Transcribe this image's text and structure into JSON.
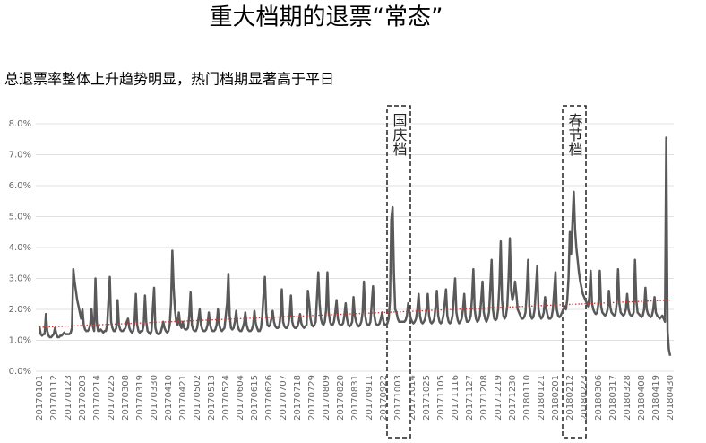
{
  "chart_data": {
    "type": "line",
    "title": "重大档期的退票“常态”",
    "subtitle": "总退票率整体上升趋势明显，热门档期显著高于平日",
    "annotations": [
      "国庆档",
      "春节档"
    ],
    "color": "#595959",
    "grid": true,
    "ylim": [
      0,
      8
    ],
    "yticks": [
      {
        "value": 0,
        "label": "0.0%"
      },
      {
        "value": 1,
        "label": "1.0%"
      },
      {
        "value": 2,
        "label": "2.0%"
      },
      {
        "value": 3,
        "label": "3.0%"
      },
      {
        "value": 4,
        "label": "4.0%"
      },
      {
        "value": 5,
        "label": "5.0%"
      },
      {
        "value": 6,
        "label": "6.0%"
      },
      {
        "value": 7,
        "label": "7.0%"
      },
      {
        "value": 8,
        "label": "8.0%"
      }
    ],
    "trend": {
      "values": [
        1.42,
        2.3
      ],
      "color": "#e03030"
    },
    "categories": [
      "20170101",
      null,
      null,
      null,
      null,
      null,
      null,
      null,
      null,
      null,
      null,
      "20170112",
      null,
      null,
      null,
      null,
      null,
      null,
      null,
      null,
      null,
      null,
      "20170123",
      null,
      null,
      null,
      null,
      null,
      null,
      null,
      null,
      null,
      null,
      "20170203",
      null,
      null,
      null,
      null,
      null,
      null,
      null,
      null,
      null,
      null,
      "20170214",
      null,
      null,
      null,
      null,
      null,
      null,
      null,
      null,
      null,
      null,
      "20170225",
      null,
      null,
      null,
      null,
      null,
      null,
      null,
      null,
      null,
      null,
      "20170308",
      null,
      null,
      null,
      null,
      null,
      null,
      null,
      null,
      null,
      null,
      "20170319",
      null,
      null,
      null,
      null,
      null,
      null,
      null,
      null,
      null,
      null,
      "20170330",
      null,
      null,
      null,
      null,
      null,
      null,
      null,
      null,
      null,
      null,
      "20170410",
      null,
      null,
      null,
      null,
      null,
      null,
      null,
      null,
      null,
      null,
      "20170421",
      null,
      null,
      null,
      null,
      null,
      null,
      null,
      null,
      null,
      null,
      "20170502",
      null,
      null,
      null,
      null,
      null,
      null,
      null,
      null,
      null,
      null,
      "20170513",
      null,
      null,
      null,
      null,
      null,
      null,
      null,
      null,
      null,
      null,
      "20170524",
      null,
      null,
      null,
      null,
      null,
      null,
      null,
      null,
      null,
      null,
      "20170604",
      null,
      null,
      null,
      null,
      null,
      null,
      null,
      null,
      null,
      null,
      "20170615",
      null,
      null,
      null,
      null,
      null,
      null,
      null,
      null,
      null,
      null,
      "20170626",
      null,
      null,
      null,
      null,
      null,
      null,
      null,
      null,
      null,
      null,
      "20170707",
      null,
      null,
      null,
      null,
      null,
      null,
      null,
      null,
      null,
      null,
      "20170718",
      null,
      null,
      null,
      null,
      null,
      null,
      null,
      null,
      null,
      null,
      "20170729",
      null,
      null,
      null,
      null,
      null,
      null,
      null,
      null,
      null,
      null,
      "20170809",
      null,
      null,
      null,
      null,
      null,
      null,
      null,
      null,
      null,
      null,
      "20170820",
      null,
      null,
      null,
      null,
      null,
      null,
      null,
      null,
      null,
      null,
      "20170831",
      null,
      null,
      null,
      null,
      null,
      null,
      null,
      null,
      null,
      null,
      "20170911",
      null,
      null,
      null,
      null,
      null,
      null,
      null,
      null,
      null,
      null,
      "20170922",
      null,
      null,
      null,
      null,
      null,
      null,
      null,
      null,
      null,
      null,
      "20171003",
      null,
      null,
      null,
      null,
      null,
      null,
      null,
      null,
      null,
      null,
      "20171014",
      null,
      null,
      null,
      null,
      null,
      null,
      null,
      null,
      null,
      null,
      "20171025",
      null,
      null,
      null,
      null,
      null,
      null,
      null,
      null,
      null,
      null,
      "20171105",
      null,
      null,
      null,
      null,
      null,
      null,
      null,
      null,
      null,
      null,
      "20171116",
      null,
      null,
      null,
      null,
      null,
      null,
      null,
      null,
      null,
      null,
      "20171127",
      null,
      null,
      null,
      null,
      null,
      null,
      null,
      null,
      null,
      null,
      "20171208",
      null,
      null,
      null,
      null,
      null,
      null,
      null,
      null,
      null,
      null,
      "20171219",
      null,
      null,
      null,
      null,
      null,
      null,
      null,
      null,
      null,
      null,
      "20171230",
      null,
      null,
      null,
      null,
      null,
      null,
      null,
      null,
      null,
      null,
      "20180110",
      null,
      null,
      null,
      null,
      null,
      null,
      null,
      null,
      null,
      null,
      "20180121",
      null,
      null,
      null,
      null,
      null,
      null,
      null,
      null,
      null,
      null,
      "20180201",
      null,
      null,
      null,
      null,
      null,
      null,
      null,
      null,
      null,
      null,
      "20180212",
      null,
      null,
      null,
      null,
      null,
      null,
      null,
      null,
      null,
      null,
      "20180223",
      null,
      null,
      null,
      null,
      null,
      null,
      null,
      null,
      null,
      null,
      "20180306",
      null,
      null,
      null,
      null,
      null,
      null,
      null,
      null,
      null,
      null,
      "20180317",
      null,
      null,
      null,
      null,
      null,
      null,
      null,
      null,
      null,
      null,
      "20180328",
      null,
      null,
      null,
      null,
      null,
      null,
      null,
      null,
      null,
      null,
      "20180408",
      null,
      null,
      null,
      null,
      null,
      null,
      null,
      null,
      null,
      null,
      "20180419",
      null,
      null,
      null,
      null,
      null,
      null,
      null,
      null,
      null,
      null,
      "20180430"
    ],
    "values": [
      1.45,
      1.2,
      1.15,
      1.2,
      1.2,
      1.85,
      1.3,
      1.15,
      1.1,
      1.1,
      1.15,
      1.2,
      1.4,
      1.2,
      1.1,
      1.1,
      1.15,
      1.15,
      1.2,
      1.25,
      1.2,
      1.2,
      1.2,
      1.2,
      1.25,
      1.4,
      3.3,
      2.9,
      2.6,
      2.3,
      2.1,
      1.9,
      1.7,
      2.0,
      1.5,
      1.35,
      1.3,
      1.3,
      1.35,
      1.5,
      2.0,
      1.45,
      1.3,
      3.0,
      1.6,
      1.3,
      1.3,
      1.35,
      1.3,
      1.25,
      1.3,
      1.3,
      1.5,
      2.3,
      3.05,
      1.6,
      1.4,
      1.3,
      1.3,
      1.4,
      2.3,
      1.5,
      1.35,
      1.3,
      1.3,
      1.35,
      1.4,
      1.6,
      1.7,
      1.4,
      1.3,
      1.25,
      1.3,
      1.6,
      2.5,
      1.5,
      1.3,
      1.25,
      1.3,
      1.3,
      1.5,
      2.45,
      1.6,
      1.3,
      1.25,
      1.2,
      1.3,
      2.0,
      2.7,
      1.4,
      1.25,
      1.2,
      1.2,
      1.25,
      1.4,
      1.6,
      1.4,
      1.3,
      1.25,
      1.3,
      1.5,
      2.2,
      3.9,
      2.7,
      2.0,
      1.6,
      1.5,
      1.9,
      1.5,
      1.4,
      1.6,
      1.4,
      1.35,
      1.35,
      1.4,
      1.8,
      2.55,
      1.5,
      1.35,
      1.3,
      1.3,
      1.4,
      1.7,
      2.0,
      1.5,
      1.35,
      1.3,
      1.3,
      1.35,
      1.5,
      1.9,
      1.5,
      1.35,
      1.3,
      1.3,
      1.35,
      1.5,
      2.0,
      1.5,
      1.35,
      1.3,
      1.35,
      1.4,
      1.8,
      2.2,
      3.15,
      1.8,
      1.4,
      1.35,
      1.4,
      1.6,
      1.95,
      1.5,
      1.35,
      1.3,
      1.3,
      1.4,
      1.55,
      1.9,
      1.5,
      1.35,
      1.3,
      1.3,
      1.35,
      1.5,
      1.95,
      1.55,
      1.4,
      1.3,
      1.3,
      1.4,
      1.8,
      2.5,
      3.05,
      1.9,
      1.5,
      1.45,
      1.5,
      1.7,
      1.95,
      1.6,
      1.45,
      1.4,
      1.4,
      1.45,
      1.8,
      2.65,
      1.6,
      1.45,
      1.4,
      1.4,
      1.5,
      1.8,
      2.45,
      1.6,
      1.45,
      1.4,
      1.4,
      1.45,
      1.6,
      1.85,
      1.55,
      1.45,
      1.4,
      1.45,
      1.5,
      2.6,
      2.2,
      1.7,
      1.5,
      1.45,
      1.5,
      1.6,
      2.4,
      3.2,
      2.2,
      1.7,
      1.55,
      1.5,
      1.6,
      2.0,
      3.2,
      1.9,
      1.6,
      1.5,
      1.5,
      1.6,
      1.9,
      2.3,
      1.7,
      1.55,
      1.5,
      1.5,
      1.55,
      1.8,
      2.2,
      1.7,
      1.5,
      1.45,
      1.5,
      1.6,
      2.4,
      1.8,
      1.6,
      1.5,
      1.45,
      1.5,
      1.6,
      1.9,
      2.9,
      1.8,
      1.55,
      1.5,
      1.5,
      1.6,
      2.2,
      2.75,
      1.8,
      1.55,
      1.5,
      1.5,
      1.55,
      1.7,
      1.9,
      1.6,
      1.5,
      1.5,
      1.55,
      1.7,
      2.3,
      4.9,
      5.3,
      3.2,
      2.0,
      1.9,
      1.7,
      1.6,
      1.6,
      1.6,
      1.6,
      1.6,
      1.65,
      1.8,
      2.2,
      1.9,
      1.7,
      1.6,
      1.55,
      1.6,
      1.7,
      2.0,
      2.5,
      1.8,
      1.6,
      1.55,
      1.6,
      1.7,
      2.0,
      2.5,
      1.8,
      1.6,
      1.55,
      1.6,
      1.7,
      2.1,
      2.6,
      1.8,
      1.6,
      1.55,
      1.6,
      1.8,
      2.2,
      2.65,
      1.8,
      1.6,
      1.55,
      1.6,
      1.8,
      2.4,
      3.0,
      1.9,
      1.65,
      1.55,
      1.6,
      1.7,
      2.0,
      2.5,
      1.8,
      1.6,
      1.6,
      1.65,
      1.8,
      2.4,
      3.3,
      2.0,
      1.7,
      1.6,
      1.65,
      1.8,
      2.3,
      2.9,
      1.9,
      1.7,
      1.6,
      1.7,
      1.9,
      2.7,
      3.6,
      2.0,
      1.7,
      1.65,
      1.7,
      2.0,
      2.8,
      4.2,
      2.3,
      1.8,
      1.7,
      1.8,
      2.1,
      3.0,
      4.3,
      2.6,
      2.3,
      2.5,
      2.9,
      2.5,
      2.0,
      1.9,
      1.8,
      1.7,
      1.7,
      1.75,
      1.9,
      2.6,
      3.6,
      2.1,
      1.8,
      1.7,
      1.75,
      2.0,
      2.7,
      3.4,
      2.0,
      1.8,
      1.7,
      1.75,
      1.9,
      2.4,
      2.0,
      1.8,
      1.7,
      1.7,
      1.75,
      2.0,
      2.6,
      3.2,
      2.0,
      1.8,
      1.75,
      1.8,
      1.9,
      2.0,
      2.1,
      2.0,
      2.3,
      3.0,
      4.5,
      3.8,
      4.8,
      5.8,
      4.6,
      4.0,
      3.6,
      3.2,
      2.9,
      2.7,
      2.5,
      2.4,
      2.3,
      2.2,
      2.1,
      2.4,
      3.25,
      2.2,
      2.0,
      1.9,
      1.85,
      1.9,
      2.2,
      3.25,
      2.1,
      1.9,
      1.85,
      1.8,
      1.85,
      2.0,
      2.6,
      2.1,
      1.9,
      1.85,
      1.8,
      1.85,
      2.2,
      3.3,
      2.2,
      1.9,
      1.85,
      1.8,
      1.85,
      2.0,
      2.5,
      2.0,
      1.85,
      1.8,
      1.8,
      1.9,
      3.6,
      2.3,
      1.9,
      1.85,
      1.8,
      1.75,
      1.8,
      2.0,
      2.7,
      2.0,
      1.85,
      1.8,
      1.75,
      1.8,
      2.0,
      2.4,
      1.9,
      1.8,
      1.75,
      1.7,
      1.75,
      1.8,
      1.7,
      1.6,
      7.55,
      1.3,
      0.7,
      0.5
    ]
  }
}
